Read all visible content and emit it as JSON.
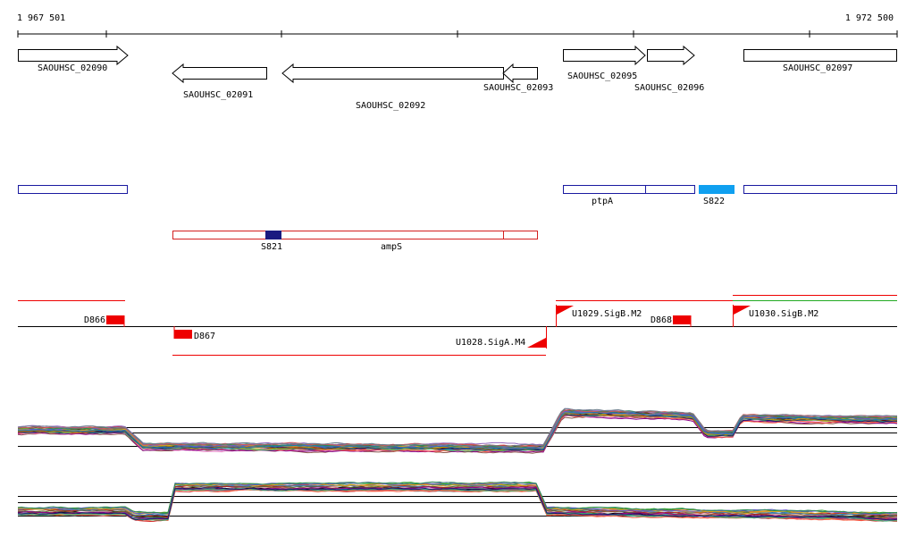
{
  "coordinates": {
    "start": "1 967 501",
    "end": "1 972 500"
  },
  "genes": [
    {
      "name": "SAOUHSC_02090",
      "strand": "+"
    },
    {
      "name": "SAOUHSC_02091",
      "strand": "-"
    },
    {
      "name": "SAOUHSC_02092",
      "strand": "-"
    },
    {
      "name": "SAOUHSC_02093",
      "strand": "-"
    },
    {
      "name": "SAOUHSC_02095",
      "strand": "+"
    },
    {
      "name": "SAOUHSC_02096",
      "strand": "+"
    },
    {
      "name": "SAOUHSC_02097",
      "strand": "+"
    }
  ],
  "forward_features": {
    "labels": [
      "ptpA",
      "S822"
    ]
  },
  "reverse_features": {
    "labels": [
      "S821",
      "ampS"
    ]
  },
  "signals": [
    "D866",
    "D867",
    "U1028.SigA.M4",
    "U1029.SigB.M2",
    "D868",
    "U1030.SigB.M2"
  ],
  "colors": {
    "gene_box": "#000000",
    "forward_box": "#1a1aa0",
    "reverse_box": "#d42020",
    "s821_fill": "#1a1a80",
    "s822_fill": "#10a0f0",
    "signal_red": "#ee0000",
    "baseline": "#000000"
  },
  "expression_palette": [
    "#1f77b4",
    "#ff7f0e",
    "#2ca02c",
    "#d62728",
    "#9467bd",
    "#8c564b",
    "#e377c2",
    "#7f7f7f",
    "#bcbd22",
    "#17becf",
    "#000000",
    "#a0522d",
    "#556b2f",
    "#b22222",
    "#4682b4",
    "#daa520",
    "#6a5acd",
    "#2e8b57",
    "#cd5c5c",
    "#708090",
    "#8b008b",
    "#ff6347",
    "#3cb371",
    "#191970",
    "#b8860b"
  ]
}
